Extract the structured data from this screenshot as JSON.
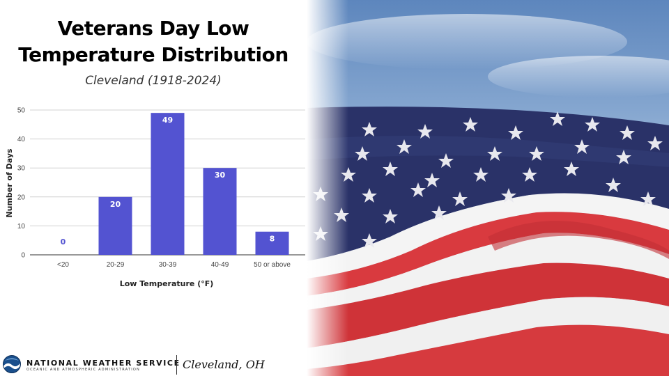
{
  "title_line1": "Veterans Day Low",
  "title_line2": "Temperature Distribution",
  "subtitle": "Cleveland (1918-2024)",
  "footer": {
    "org_name": "NATIONAL WEATHER SERVICE",
    "org_sub": "OCEANIC AND ATMOSPHERIC ADMINISTRATION",
    "office": "Cleveland, OH"
  },
  "colors": {
    "bar": "#5353d1",
    "label_on_bar": "#ffffff",
    "label_zero": "#5353d1"
  },
  "chart_data": {
    "type": "bar",
    "categories": [
      "<20",
      "20-29",
      "30-39",
      "40-49",
      "50 or above"
    ],
    "values": [
      0,
      20,
      49,
      30,
      8
    ],
    "data_labels": [
      "0",
      "20",
      "49",
      "30",
      "8"
    ],
    "xlabel": "Low Temperature (°F)",
    "ylabel": "Number of Days",
    "ylim": [
      0,
      50
    ],
    "yticks": [
      0,
      10,
      20,
      30,
      40,
      50
    ],
    "grid": true,
    "legend": "none"
  }
}
